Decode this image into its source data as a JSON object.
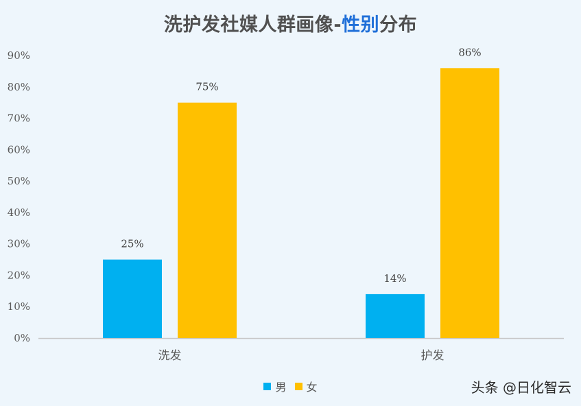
{
  "title": {
    "prefix": "洗护发社媒人群画像-",
    "highlight": "性别",
    "suffix": "分布"
  },
  "watermark": "头条 @日化智云",
  "colors": {
    "male": "#00b0f0",
    "female": "#ffc000",
    "highlight": "#1f6fd8"
  },
  "chart_data": {
    "type": "bar",
    "title": "洗护发社媒人群画像-性别分布",
    "categories": [
      "洗发",
      "护发"
    ],
    "series": [
      {
        "name": "男",
        "values": [
          25,
          14
        ],
        "labels": [
          "25%",
          "14%"
        ],
        "color": "#00b0f0"
      },
      {
        "name": "女",
        "values": [
          75,
          86
        ],
        "labels": [
          "75%",
          "86%"
        ],
        "color": "#ffc000"
      }
    ],
    "ylim": [
      0,
      90
    ],
    "yticks": [
      "0%",
      "10%",
      "20%",
      "30%",
      "40%",
      "50%",
      "60%",
      "70%",
      "80%",
      "90%"
    ],
    "grid": false,
    "legend_position": "bottom",
    "xlabel": "",
    "ylabel": ""
  }
}
